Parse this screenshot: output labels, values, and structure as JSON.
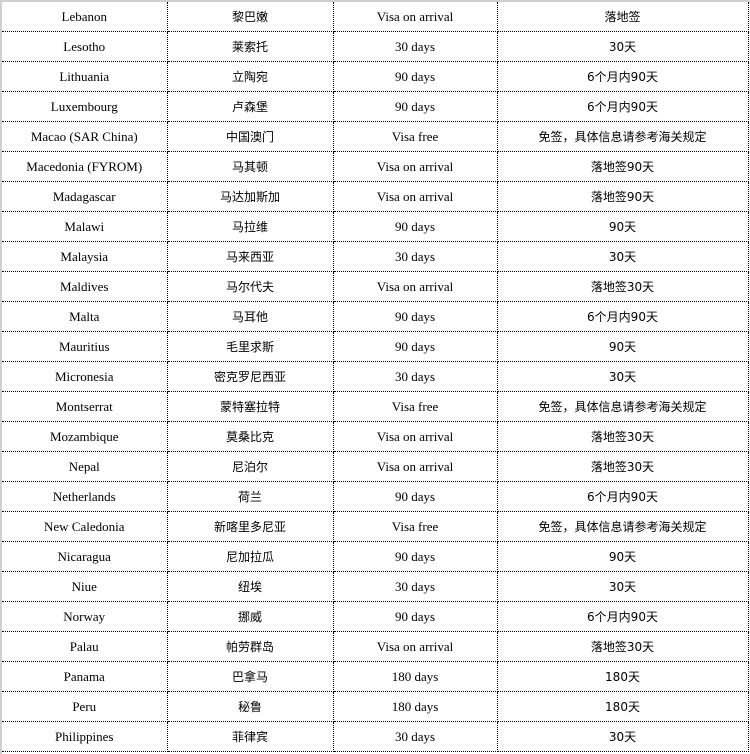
{
  "rows": [
    [
      "Lebanon",
      "黎巴嫩",
      "Visa on arrival",
      "落地签"
    ],
    [
      "Lesotho",
      "莱索托",
      "30 days",
      "30天"
    ],
    [
      "Lithuania",
      "立陶宛",
      "90 days",
      "6个月内90天"
    ],
    [
      "Luxembourg",
      "卢森堡",
      "90 days",
      "6个月内90天"
    ],
    [
      "Macao (SAR China)",
      "中国澳门",
      "Visa free",
      "免签，具体信息请参考海关规定"
    ],
    [
      "Macedonia (FYROM)",
      "马其顿",
      "Visa on arrival",
      "落地签90天"
    ],
    [
      "Madagascar",
      "马达加斯加",
      "Visa on arrival",
      "落地签90天"
    ],
    [
      "Malawi",
      "马拉维",
      "90 days",
      "90天"
    ],
    [
      "Malaysia",
      "马来西亚",
      "30 days",
      "30天"
    ],
    [
      "Maldives",
      "马尔代夫",
      "Visa on arrival",
      "落地签30天"
    ],
    [
      "Malta",
      "马耳他",
      "90 days",
      "6个月内90天"
    ],
    [
      "Mauritius",
      "毛里求斯",
      "90 days",
      "90天"
    ],
    [
      "Micronesia",
      "密克罗尼西亚",
      "30 days",
      "30天"
    ],
    [
      "Montserrat",
      "蒙特塞拉特",
      "Visa free",
      "免签，具体信息请参考海关规定"
    ],
    [
      "Mozambique",
      "莫桑比克",
      "Visa on arrival",
      "落地签30天"
    ],
    [
      "Nepal",
      "尼泊尔",
      "Visa on arrival",
      "落地签30天"
    ],
    [
      "Netherlands",
      "荷兰",
      "90 days",
      "6个月内90天"
    ],
    [
      "New Caledonia",
      "新喀里多尼亚",
      "Visa free",
      "免签，具体信息请参考海关规定"
    ],
    [
      "Nicaragua",
      "尼加拉瓜",
      "90 days",
      "90天"
    ],
    [
      "Niue",
      "纽埃",
      "30 days",
      "30天"
    ],
    [
      "Norway",
      "挪威",
      "90 days",
      "6个月内90天"
    ],
    [
      "Palau",
      "帕劳群岛",
      "Visa on arrival",
      "落地签30天"
    ],
    [
      "Panama",
      "巴拿马",
      "180 days",
      "180天"
    ],
    [
      "Peru",
      "秘鲁",
      "180 days",
      "180天"
    ],
    [
      "Philippines",
      "菲律宾",
      "30 days",
      "30天"
    ]
  ]
}
